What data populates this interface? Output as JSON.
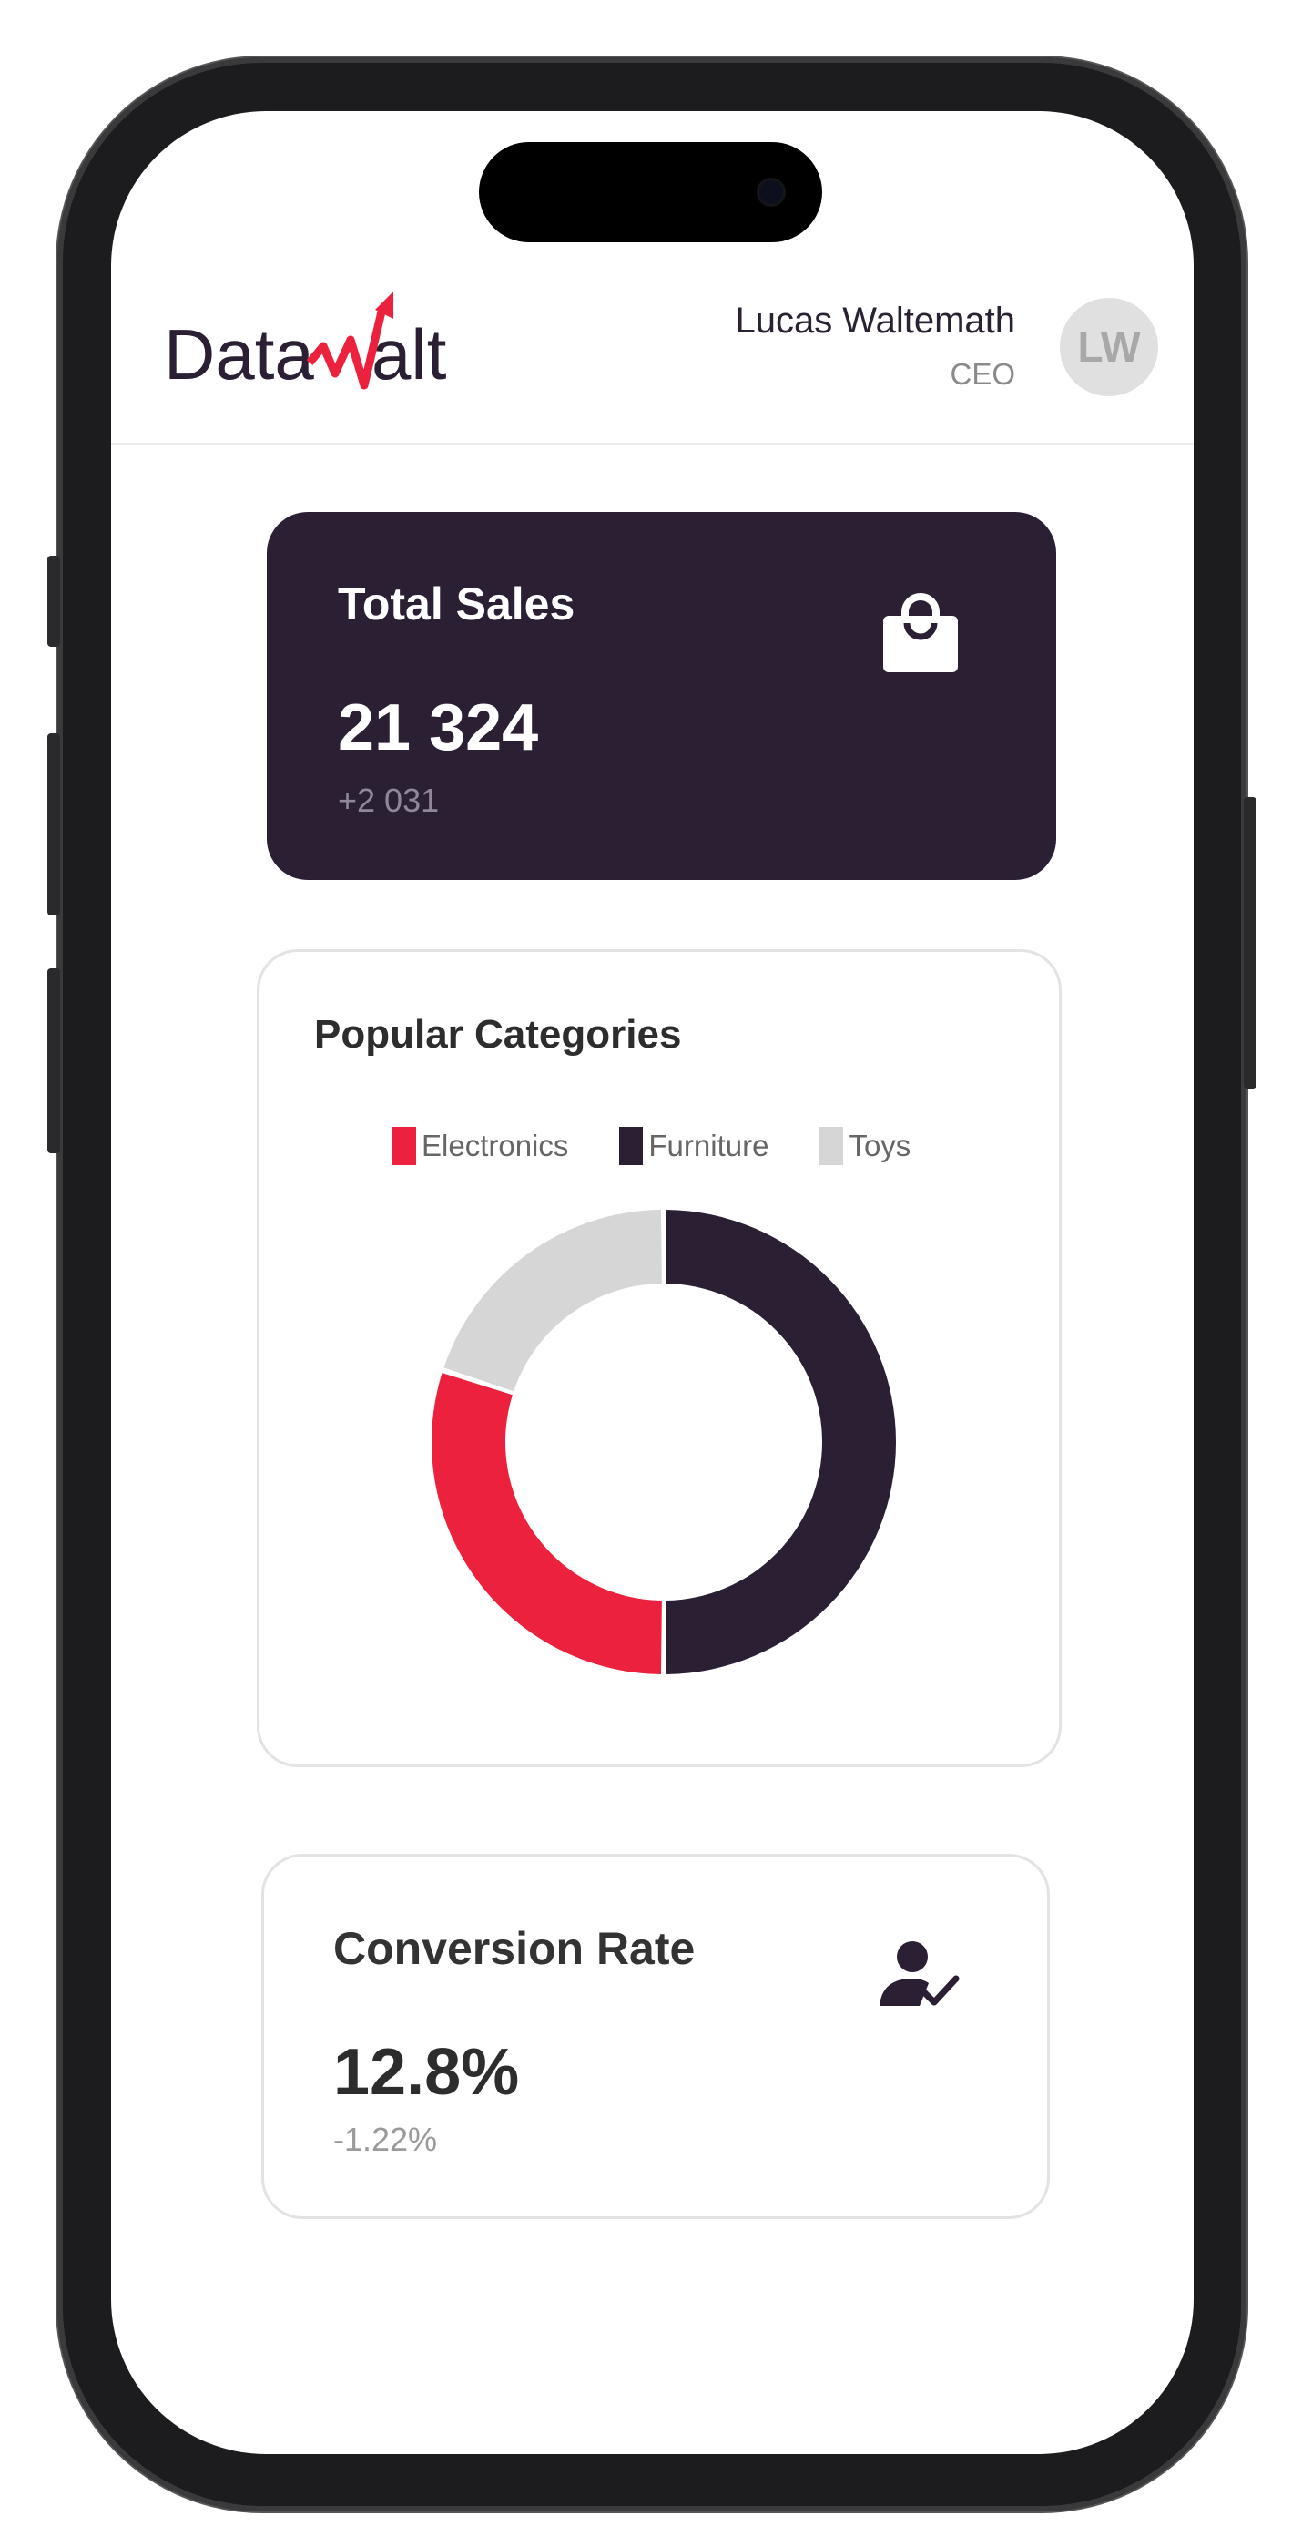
{
  "header": {
    "logo_text": "DataWalt",
    "user_name": "Lucas Waltemath",
    "user_role": "CEO",
    "avatar_initials": "LW"
  },
  "total_sales": {
    "title": "Total Sales",
    "value": "21 324",
    "change": "+2 031",
    "icon": "shopping-bag-icon"
  },
  "popular_categories": {
    "title": "Popular Categories"
  },
  "chart_data": {
    "type": "pie",
    "variant": "donut",
    "title": "Popular Categories",
    "legend_position": "top",
    "categories": [
      "Electronics",
      "Furniture",
      "Toys"
    ],
    "values": [
      30,
      50,
      20
    ],
    "colors": [
      "#ec213d",
      "#2a1f33",
      "#d6d6d6"
    ]
  },
  "conversion_rate": {
    "title": "Conversion Rate",
    "value": "12.8%",
    "change": "-1.22%",
    "icon": "user-check-icon"
  },
  "colors": {
    "brand_dark": "#2a1f33",
    "brand_red": "#ec213d"
  }
}
